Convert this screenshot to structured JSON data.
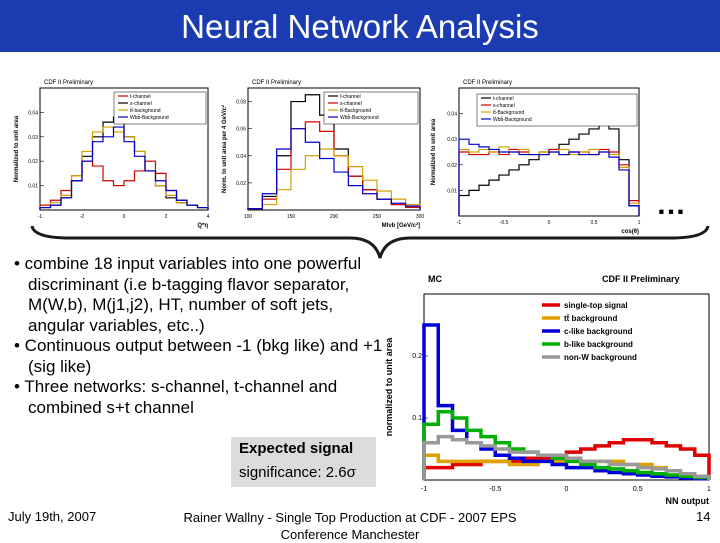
{
  "title": "Neural Network Analysis",
  "bullets": [
    "• combine 18 input variables into one powerful discriminant (i.e b-tagging flavor separator, M(W,b), M(j1,j2), HT, number of soft jets, angular variables, etc..)",
    "• Continuous output between -1 (bkg like) and +1 (sig like)",
    "• Three networks: s-channel, t-channel and combined s+t channel"
  ],
  "callout": {
    "line1": "Expected signal",
    "line2": "significance: 2.6σ"
  },
  "ellipsis": "…",
  "footer": {
    "date": "July 19th, 2007",
    "center_line1": "Rainer Wallny - Single Top Production at CDF - 2007 EPS",
    "center_line2": "Conference Manchester",
    "page": "14"
  },
  "colors": {
    "title_bg": "#1a3cb0",
    "callout_bg": "#dcdcdc"
  },
  "chart_data": [
    {
      "type": "line",
      "title": "CDF II Preliminary",
      "xlabel": "Q*η",
      "ylabel": "Normalized to unit area",
      "xlim": [
        -4,
        4
      ],
      "ylim": [
        0,
        0.05
      ],
      "x_ticks": [
        "-1",
        "-2",
        "0",
        "2",
        "4"
      ],
      "y_ticks": [
        "0.04",
        "0.03",
        "0.02",
        "0.01"
      ],
      "legend": [
        "t-channel",
        "s-channel",
        "tt̄-background",
        "Wbb̄-Background"
      ],
      "series": [
        {
          "name": "t-channel",
          "color": "#d00000",
          "y": [
            0.002,
            0.004,
            0.008,
            0.014,
            0.02,
            0.018,
            0.012,
            0.01,
            0.012,
            0.016,
            0.02,
            0.015,
            0.008,
            0.004,
            0.002,
            0.001
          ]
        },
        {
          "name": "s-channel",
          "color": "#000000",
          "y": [
            0.001,
            0.002,
            0.005,
            0.012,
            0.022,
            0.03,
            0.036,
            0.038,
            0.03,
            0.024,
            0.016,
            0.01,
            0.005,
            0.003,
            0.002,
            0.001
          ]
        },
        {
          "name": "tt̄-background",
          "color": "#d4a000",
          "y": [
            0.001,
            0.003,
            0.006,
            0.014,
            0.024,
            0.032,
            0.034,
            0.032,
            0.03,
            0.024,
            0.016,
            0.01,
            0.006,
            0.003,
            0.002,
            0.001
          ]
        },
        {
          "name": "Wbb̄-Background",
          "color": "#0000cc",
          "y": [
            0.001,
            0.002,
            0.005,
            0.012,
            0.02,
            0.028,
            0.03,
            0.034,
            0.028,
            0.022,
            0.016,
            0.012,
            0.008,
            0.004,
            0.002,
            0.001
          ]
        }
      ]
    },
    {
      "type": "line",
      "title": "CDF II Preliminary",
      "xlabel": "Mlνb [GeV/c²]",
      "ylabel": "Norm. to unit area per 4 GeV/c²",
      "xlim": [
        100,
        300
      ],
      "ylim": [
        0,
        0.09
      ],
      "x_ticks": [
        "100",
        "150",
        "200",
        "250",
        "300"
      ],
      "y_ticks": [
        "0.08",
        "0.06",
        "0.04",
        "0.02"
      ],
      "legend": [
        "t-channel",
        "s-channel",
        "tt̄-Background",
        "Wbb̄-Background"
      ],
      "series": [
        {
          "name": "t-channel",
          "color": "#000000",
          "y": [
            0.001,
            0.01,
            0.04,
            0.08,
            0.085,
            0.07,
            0.045,
            0.025,
            0.015,
            0.008,
            0.004,
            0.002
          ]
        },
        {
          "name": "s-channel",
          "color": "#d00000",
          "y": [
            0.001,
            0.008,
            0.03,
            0.06,
            0.065,
            0.058,
            0.04,
            0.025,
            0.015,
            0.008,
            0.004,
            0.002
          ]
        },
        {
          "name": "tt̄-Background",
          "color": "#d4a000",
          "y": [
            0.001,
            0.004,
            0.015,
            0.03,
            0.04,
            0.045,
            0.04,
            0.032,
            0.022,
            0.014,
            0.008,
            0.004
          ]
        },
        {
          "name": "Wbb̄-Background",
          "color": "#0000cc",
          "y": [
            0.001,
            0.012,
            0.045,
            0.06,
            0.05,
            0.038,
            0.028,
            0.018,
            0.012,
            0.008,
            0.005,
            0.003
          ]
        }
      ]
    },
    {
      "type": "line",
      "title": "CDF II Preliminary",
      "xlabel": "cos(θ)",
      "ylabel": "Normalized to unit area",
      "xlim": [
        -1,
        1
      ],
      "ylim": [
        0,
        0.05
      ],
      "x_ticks": [
        "-1",
        "-0.5",
        "0",
        "0.5",
        "1"
      ],
      "y_ticks": [
        "0.04",
        "0.03",
        "0.02",
        "0.01"
      ],
      "legend": [
        "t-channel",
        "s-channel",
        "tt̄-Background",
        "Wbb̄-Background"
      ],
      "series": [
        {
          "name": "t-channel",
          "color": "#000000",
          "y": [
            0.008,
            0.01,
            0.012,
            0.014,
            0.016,
            0.018,
            0.02,
            0.022,
            0.024,
            0.026,
            0.028,
            0.03,
            0.032,
            0.034,
            0.036,
            0.034,
            0.022,
            0.004
          ]
        },
        {
          "name": "s-channel",
          "color": "#d00000",
          "y": [
            0.025,
            0.024,
            0.024,
            0.025,
            0.024,
            0.026,
            0.025,
            0.024,
            0.025,
            0.026,
            0.024,
            0.025,
            0.025,
            0.024,
            0.026,
            0.025,
            0.02,
            0.006
          ]
        },
        {
          "name": "tt̄-Background",
          "color": "#d4a000",
          "y": [
            0.026,
            0.025,
            0.026,
            0.025,
            0.027,
            0.025,
            0.026,
            0.024,
            0.025,
            0.025,
            0.026,
            0.024,
            0.025,
            0.026,
            0.025,
            0.024,
            0.019,
            0.005
          ]
        },
        {
          "name": "Wbb̄-Background",
          "color": "#0000cc",
          "y": [
            0.03,
            0.028,
            0.027,
            0.026,
            0.025,
            0.025,
            0.024,
            0.024,
            0.024,
            0.025,
            0.024,
            0.025,
            0.024,
            0.024,
            0.025,
            0.023,
            0.018,
            0.004
          ]
        }
      ]
    },
    {
      "type": "line",
      "title": "CDF II Preliminary",
      "corner_label": "MC",
      "xlabel": "NN output",
      "ylabel": "normalized to unit area",
      "xlim": [
        -1,
        1
      ],
      "ylim": [
        0,
        0.3
      ],
      "x_ticks": [
        "-1",
        "-0.5",
        "0",
        "0.5",
        "1"
      ],
      "y_ticks": [
        "0.2",
        "0.1"
      ],
      "legend": [
        "single-top signal",
        "tt̄ background",
        "c-like background",
        "b-like background",
        "non-W background"
      ],
      "series": [
        {
          "name": "single-top signal",
          "color": "#e00000",
          "y": [
            0.02,
            0.02,
            0.025,
            0.025,
            0.03,
            0.03,
            0.03,
            0.035,
            0.035,
            0.04,
            0.045,
            0.05,
            0.055,
            0.06,
            0.065,
            0.065,
            0.06,
            0.055,
            0.05,
            0.04
          ]
        },
        {
          "name": "tt̄ background",
          "color": "#e0a000",
          "y": [
            0.04,
            0.03,
            0.03,
            0.03,
            0.03,
            0.03,
            0.025,
            0.025,
            0.03,
            0.03,
            0.03,
            0.03,
            0.03,
            0.03,
            0.025,
            0.025,
            0.02,
            0.015,
            0.01,
            0.005
          ]
        },
        {
          "name": "c-like background",
          "color": "#0000dd",
          "y": [
            0.25,
            0.12,
            0.08,
            0.06,
            0.05,
            0.04,
            0.035,
            0.03,
            0.03,
            0.025,
            0.02,
            0.02,
            0.015,
            0.012,
            0.01,
            0.008,
            0.006,
            0.005,
            0.003,
            0.002
          ]
        },
        {
          "name": "b-like background",
          "color": "#00b000",
          "y": [
            0.09,
            0.11,
            0.1,
            0.08,
            0.07,
            0.06,
            0.05,
            0.045,
            0.04,
            0.035,
            0.03,
            0.025,
            0.02,
            0.018,
            0.015,
            0.012,
            0.01,
            0.008,
            0.006,
            0.004
          ]
        },
        {
          "name": "non-W background",
          "color": "#999999",
          "y": [
            0.06,
            0.07,
            0.065,
            0.06,
            0.055,
            0.05,
            0.045,
            0.045,
            0.04,
            0.04,
            0.035,
            0.03,
            0.03,
            0.025,
            0.025,
            0.02,
            0.018,
            0.015,
            0.01,
            0.006
          ]
        }
      ]
    }
  ]
}
